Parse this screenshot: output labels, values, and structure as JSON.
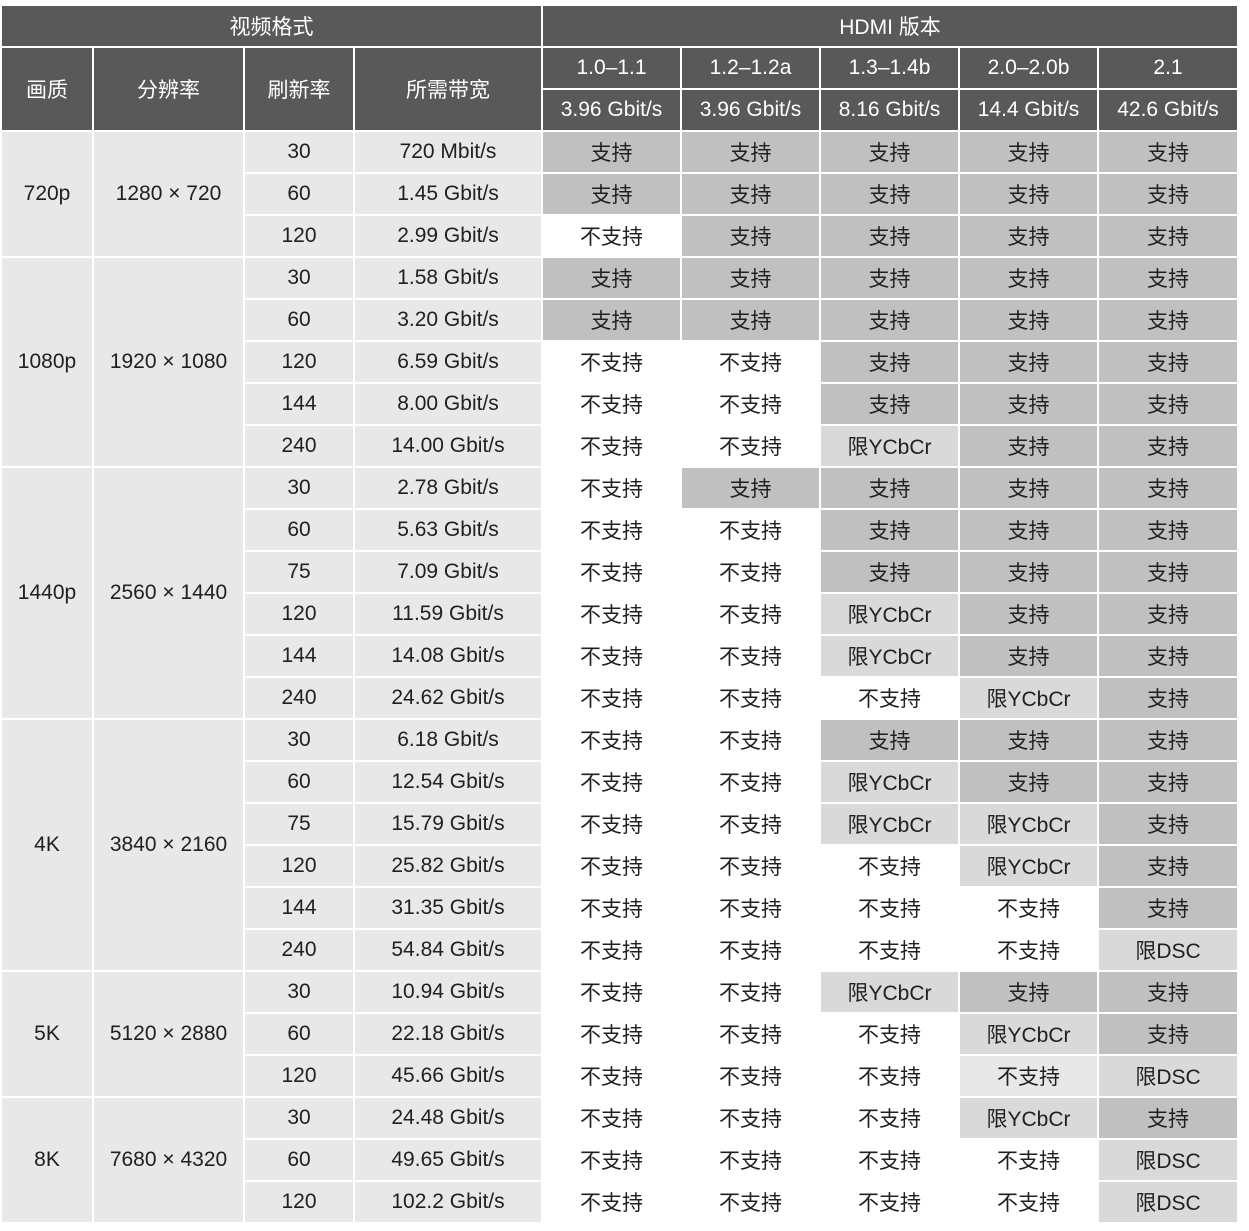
{
  "header": {
    "video_format": "视频格式",
    "hdmi_version": "HDMI 版本",
    "columns": [
      "画质",
      "分辨率",
      "刷新率",
      "所需带宽"
    ],
    "versions": [
      {
        "name": "1.0–1.1",
        "bandwidth": "3.96 Gbit/s"
      },
      {
        "name": "1.2–1.2a",
        "bandwidth": "3.96 Gbit/s"
      },
      {
        "name": "1.3–1.4b",
        "bandwidth": "8.16 Gbit/s"
      },
      {
        "name": "2.0–2.0b",
        "bandwidth": "14.4 Gbit/s"
      },
      {
        "name": "2.1",
        "bandwidth": "42.6 Gbit/s"
      }
    ]
  },
  "colors": {
    "header": "#595959",
    "supported": "#c0c0c0",
    "limited": "#d9d9d9",
    "format": "#e8e8e8",
    "unsupported": "#ffffff"
  },
  "groups": [
    {
      "quality": "720p",
      "resolution": "1280 × 720",
      "rows": [
        {
          "rate": "30",
          "bw": "720 Mbit/s",
          "cells": [
            "支持",
            "支持",
            "支持",
            "支持",
            "支持"
          ]
        },
        {
          "rate": "60",
          "bw": "1.45 Gbit/s",
          "cells": [
            "支持",
            "支持",
            "支持",
            "支持",
            "支持"
          ]
        },
        {
          "rate": "120",
          "bw": "2.99 Gbit/s",
          "cells": [
            "不支持",
            "支持",
            "支持",
            "支持",
            "支持"
          ]
        }
      ]
    },
    {
      "quality": "1080p",
      "resolution": "1920 × 1080",
      "rows": [
        {
          "rate": "30",
          "bw": "1.58 Gbit/s",
          "cells": [
            "支持",
            "支持",
            "支持",
            "支持",
            "支持"
          ]
        },
        {
          "rate": "60",
          "bw": "3.20 Gbit/s",
          "cells": [
            "支持",
            "支持",
            "支持",
            "支持",
            "支持"
          ]
        },
        {
          "rate": "120",
          "bw": "6.59 Gbit/s",
          "cells": [
            "不支持",
            "不支持",
            "支持",
            "支持",
            "支持"
          ]
        },
        {
          "rate": "144",
          "bw": "8.00 Gbit/s",
          "cells": [
            "不支持",
            "不支持",
            "支持",
            "支持",
            "支持"
          ]
        },
        {
          "rate": "240",
          "bw": "14.00 Gbit/s",
          "cells": [
            "不支持",
            "不支持",
            "限YCbCr",
            "支持",
            "支持"
          ]
        }
      ]
    },
    {
      "quality": "1440p",
      "resolution": "2560 × 1440",
      "rows": [
        {
          "rate": "30",
          "bw": "2.78 Gbit/s",
          "cells": [
            "不支持",
            "支持",
            "支持",
            "支持",
            "支持"
          ]
        },
        {
          "rate": "60",
          "bw": "5.63 Gbit/s",
          "cells": [
            "不支持",
            "不支持",
            "支持",
            "支持",
            "支持"
          ]
        },
        {
          "rate": "75",
          "bw": "7.09 Gbit/s",
          "cells": [
            "不支持",
            "不支持",
            "支持",
            "支持",
            "支持"
          ]
        },
        {
          "rate": "120",
          "bw": "11.59 Gbit/s",
          "cells": [
            "不支持",
            "不支持",
            "限YCbCr",
            "支持",
            "支持"
          ]
        },
        {
          "rate": "144",
          "bw": "14.08 Gbit/s",
          "cells": [
            "不支持",
            "不支持",
            "限YCbCr",
            "支持",
            "支持"
          ]
        },
        {
          "rate": "240",
          "bw": "24.62 Gbit/s",
          "cells": [
            "不支持",
            "不支持",
            "不支持",
            "限YCbCr",
            "支持"
          ]
        }
      ]
    },
    {
      "quality": "4K",
      "resolution": "3840 × 2160",
      "rows": [
        {
          "rate": "30",
          "bw": "6.18 Gbit/s",
          "cells": [
            "不支持",
            "不支持",
            "支持",
            "支持",
            "支持"
          ]
        },
        {
          "rate": "60",
          "bw": "12.54 Gbit/s",
          "cells": [
            "不支持",
            "不支持",
            "限YCbCr",
            "支持",
            "支持"
          ]
        },
        {
          "rate": "75",
          "bw": "15.79 Gbit/s",
          "cells": [
            "不支持",
            "不支持",
            "限YCbCr",
            "限YCbCr",
            "支持"
          ]
        },
        {
          "rate": "120",
          "bw": "25.82 Gbit/s",
          "cells": [
            "不支持",
            "不支持",
            "不支持",
            "限YCbCr",
            "支持"
          ]
        },
        {
          "rate": "144",
          "bw": "31.35 Gbit/s",
          "cells": [
            "不支持",
            "不支持",
            "不支持",
            "不支持",
            "支持"
          ]
        },
        {
          "rate": "240",
          "bw": "54.84 Gbit/s",
          "cells": [
            "不支持",
            "不支持",
            "不支持",
            "不支持",
            "限DSC"
          ]
        }
      ]
    },
    {
      "quality": "5K",
      "resolution": "5120 × 2880",
      "rows": [
        {
          "rate": "30",
          "bw": "10.94 Gbit/s",
          "cells": [
            "不支持",
            "不支持",
            "限YCbCr",
            "支持",
            "支持"
          ]
        },
        {
          "rate": "60",
          "bw": "22.18 Gbit/s",
          "cells": [
            "不支持",
            "不支持",
            "不支持",
            "限YCbCr",
            "支持"
          ]
        },
        {
          "rate": "120",
          "bw": "45.66 Gbit/s",
          "cells": [
            "不支持",
            "不支持",
            "不支持",
            "不支持",
            "限DSC"
          ],
          "shaded_unsupported": [
            3
          ]
        }
      ]
    },
    {
      "quality": "8K",
      "resolution": "7680 × 4320",
      "rows": [
        {
          "rate": "30",
          "bw": "24.48 Gbit/s",
          "cells": [
            "不支持",
            "不支持",
            "不支持",
            "限YCbCr",
            "支持"
          ]
        },
        {
          "rate": "60",
          "bw": "49.65 Gbit/s",
          "cells": [
            "不支持",
            "不支持",
            "不支持",
            "不支持",
            "限DSC"
          ]
        },
        {
          "rate": "120",
          "bw": "102.2 Gbit/s",
          "cells": [
            "不支持",
            "不支持",
            "不支持",
            "不支持",
            "限DSC"
          ]
        }
      ]
    }
  ]
}
